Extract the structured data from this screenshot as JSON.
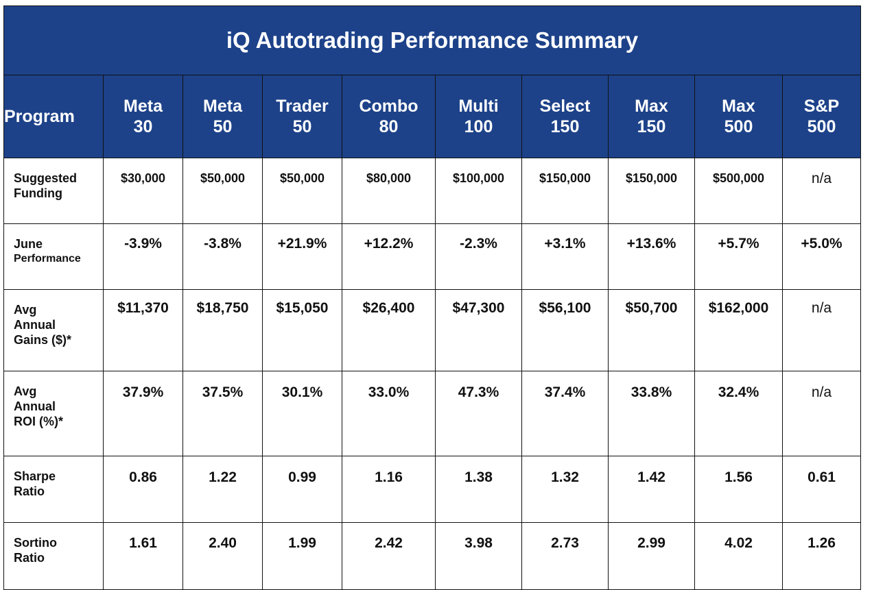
{
  "title": "iQ Autotrading Performance Summary",
  "colors": {
    "header_background": "#1d4289",
    "header_text": "#ffffff",
    "body_text": "#111111",
    "border": "#111111"
  },
  "chart_data": {
    "type": "table",
    "title": "iQ Autotrading Performance Summary",
    "columns": [
      {
        "label": "Program",
        "lines": [
          "Program"
        ]
      },
      {
        "label": "Meta 30",
        "lines": [
          "Meta",
          "30"
        ]
      },
      {
        "label": "Meta 50",
        "lines": [
          "Meta",
          "50"
        ]
      },
      {
        "label": "Trader 50",
        "lines": [
          "Trader",
          "50"
        ]
      },
      {
        "label": "Combo 80",
        "lines": [
          "Combo",
          "80"
        ]
      },
      {
        "label": "Multi 100",
        "lines": [
          "Multi",
          "100"
        ]
      },
      {
        "label": "Select 150",
        "lines": [
          "Select",
          "150"
        ]
      },
      {
        "label": "Max 150",
        "lines": [
          "Max",
          "150"
        ]
      },
      {
        "label": "Max 500",
        "lines": [
          "Max",
          "500"
        ]
      },
      {
        "label": "S&P 500",
        "lines": [
          "S&P",
          "500"
        ]
      }
    ],
    "rows": [
      {
        "key": "funding",
        "label": "Suggested Funding",
        "label_lines": [
          "Suggested",
          "Funding"
        ],
        "values": [
          "$30,000",
          "$50,000",
          "$50,000",
          "$80,000",
          "$100,000",
          "$150,000",
          "$150,000",
          "$500,000",
          "n/a"
        ]
      },
      {
        "key": "june",
        "label": "June Performance",
        "label_lines": [
          "June",
          "Performance"
        ],
        "values": [
          "-3.9%",
          "-3.8%",
          "+21.9%",
          "+12.2%",
          "-2.3%",
          "+3.1%",
          "+13.6%",
          "+5.7%",
          "+5.0%"
        ]
      },
      {
        "key": "gains",
        "label": "Avg Annual Gains ($)*",
        "label_lines": [
          "Avg",
          "Annual",
          "Gains ($)*"
        ],
        "values": [
          "$11,370",
          "$18,750",
          "$15,050",
          "$26,400",
          "$47,300",
          "$56,100",
          "$50,700",
          "$162,000",
          "n/a"
        ]
      },
      {
        "key": "roi",
        "label": "Avg Annual ROI (%)*",
        "label_lines": [
          "Avg",
          "Annual",
          "ROI (%)*"
        ],
        "values": [
          "37.9%",
          "37.5%",
          "30.1%",
          "33.0%",
          "47.3%",
          "37.4%",
          "33.8%",
          "32.4%",
          "n/a"
        ]
      },
      {
        "key": "sharpe",
        "label": "Sharpe Ratio",
        "label_lines": [
          "Sharpe",
          "Ratio"
        ],
        "values": [
          "0.86",
          "1.22",
          "0.99",
          "1.16",
          "1.38",
          "1.32",
          "1.42",
          "1.56",
          "0.61"
        ]
      },
      {
        "key": "sortino",
        "label": "Sortino Ratio",
        "label_lines": [
          "Sortino",
          "Ratio"
        ],
        "values": [
          "1.61",
          "2.40",
          "1.99",
          "2.42",
          "3.98",
          "2.73",
          "2.99",
          "4.02",
          "1.26"
        ]
      }
    ]
  }
}
